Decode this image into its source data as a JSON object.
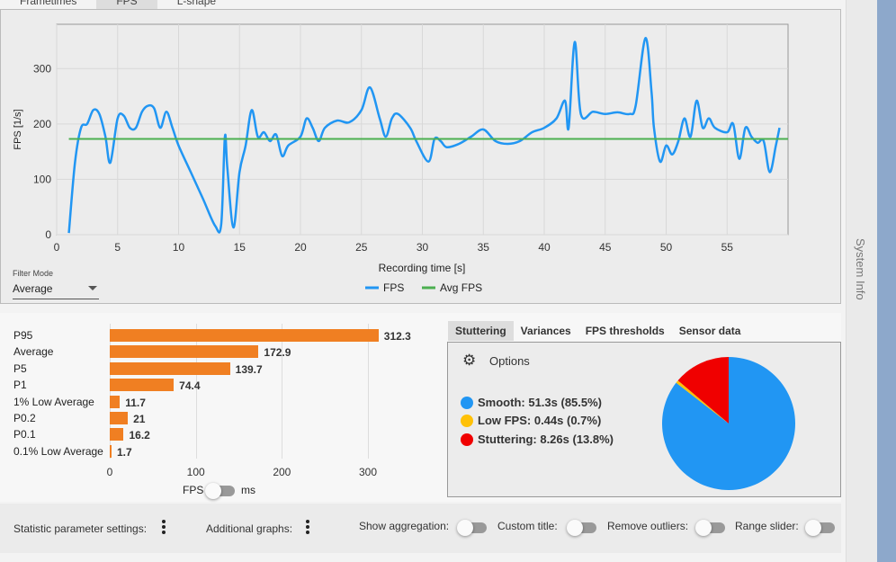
{
  "tabs": [
    "Frametimes",
    "FPS",
    "L-shape"
  ],
  "filter": {
    "label": "Filter Mode",
    "value": "Average"
  },
  "chart_data": [
    {
      "type": "line",
      "title": "",
      "xlabel": "Recording time [s]",
      "ylabel": "FPS [1/s]",
      "xlim": [
        0,
        60
      ],
      "ylim": [
        0,
        380
      ],
      "xticks": [
        "0",
        "5",
        "10",
        "15",
        "20",
        "25",
        "30",
        "35",
        "40",
        "45",
        "50",
        "55"
      ],
      "yticks": [
        "0",
        "100",
        "200",
        "300"
      ],
      "legend": [
        "FPS",
        "Avg FPS"
      ],
      "legend_position": "bottom",
      "grid": true,
      "colors": {
        "fps": "#2196f3",
        "avg": "#4caf50"
      },
      "avg_fps": 172.9,
      "series": [
        {
          "name": "FPS",
          "x": [
            1,
            1.5,
            2,
            2.5,
            3,
            3.5,
            4,
            4.4,
            5,
            5.5,
            6,
            6.5,
            7,
            7.5,
            8,
            8.5,
            9,
            9.5,
            10,
            11,
            12,
            13,
            13.5,
            13.8,
            14,
            14.5,
            15,
            15.5,
            16,
            16.5,
            17,
            17.5,
            18,
            18.5,
            19,
            20,
            20.5,
            21,
            21.5,
            22,
            23,
            24,
            25,
            25.7,
            26.5,
            27,
            27.5,
            28,
            29,
            29.5,
            30.5,
            31,
            31.5,
            32,
            33,
            34,
            35,
            36,
            37,
            38,
            39,
            40,
            41,
            41.7,
            42,
            42.5,
            43,
            44,
            45,
            46,
            47,
            47.5,
            48.3,
            48.8,
            49,
            49.5,
            50,
            50.5,
            51,
            51.5,
            52,
            52.5,
            53,
            53.5,
            54,
            55,
            55.5,
            56,
            56.5,
            57,
            57.5,
            58,
            58.5,
            59,
            59.3
          ],
          "y": [
            3,
            130,
            193,
            200,
            225,
            218,
            177,
            130,
            210,
            215,
            193,
            193,
            222,
            233,
            228,
            193,
            222,
            193,
            161,
            113,
            65,
            16,
            19,
            177,
            121,
            13,
            113,
            161,
            225,
            177,
            185,
            169,
            181,
            142,
            161,
            177,
            210,
            193,
            169,
            193,
            206,
            203,
            225,
            266,
            210,
            177,
            210,
            218,
            193,
            169,
            132,
            173,
            169,
            158,
            164,
            177,
            190,
            169,
            164,
            169,
            185,
            193,
            210,
            242,
            193,
            348,
            218,
            222,
            218,
            221,
            218,
            233,
            355,
            258,
            193,
            132,
            161,
            145,
            169,
            210,
            177,
            242,
            193,
            210,
            193,
            185,
            200,
            137,
            193,
            177,
            166,
            169,
            113,
            161,
            193
          ]
        }
      ]
    },
    {
      "type": "bar",
      "categories": [
        "P95",
        "Average",
        "P5",
        "P1",
        "1% Low Average",
        "P0.2",
        "P0.1",
        "0.1% Low Average"
      ],
      "values": [
        312.3,
        172.9,
        139.7,
        74.4,
        11.7,
        21,
        16.2,
        1.7
      ],
      "value_labels": [
        "312.3",
        "172.9",
        "139.7",
        "74.4",
        "11.7",
        "21",
        "16.2",
        "1.7"
      ],
      "xticks": [
        "0",
        "100",
        "200",
        "300"
      ],
      "xlim": [
        0,
        340
      ],
      "color": "#f07f22"
    },
    {
      "type": "pie",
      "labels": [
        "Smooth",
        "Low FPS",
        "Stuttering"
      ],
      "values": [
        85.5,
        0.7,
        13.8
      ],
      "colors": [
        "#2196f3",
        "#ffc107",
        "#f00000"
      ]
    }
  ],
  "unit_toggle": {
    "left": "FPS",
    "right": "ms"
  },
  "right_tabs": [
    "Stuttering",
    "Variances",
    "FPS thresholds",
    "Sensor data"
  ],
  "options_label": "Options",
  "stutter_legend": [
    {
      "name": "Smooth:",
      "value": "51.3s (85.5%)"
    },
    {
      "name": "Low FPS:",
      "value": "0.44s (0.7%)"
    },
    {
      "name": "Stuttering:",
      "value": "8.26s (13.8%)"
    }
  ],
  "toolbar": {
    "stat_settings": "Statistic parameter settings:",
    "additional_graphs": "Additional graphs:",
    "show_aggregation": "Show aggregation:",
    "custom_title": "Custom title:",
    "remove_outliers": "Remove outliers:",
    "range_slider": "Range slider:"
  },
  "sidebar": {
    "system_info": "System Info"
  }
}
